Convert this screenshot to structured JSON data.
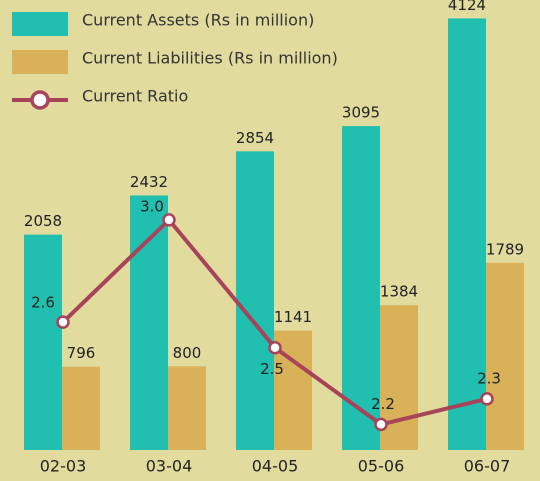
{
  "chart_data": {
    "type": "bar",
    "categories": [
      "02-03",
      "03-04",
      "04-05",
      "05-06",
      "06-07"
    ],
    "series": [
      {
        "name": "Current Assets (Rs in million)",
        "color": "#20bfb0",
        "values": [
          2058,
          2432,
          2854,
          3095,
          4124
        ]
      },
      {
        "name": "Current Liabilities (Rs in million)",
        "color": "#d8b158",
        "values": [
          796,
          800,
          1141,
          1384,
          1789
        ]
      },
      {
        "name": "Current Ratio",
        "color": "#a8435a",
        "type": "line",
        "axis": "y2",
        "values": [
          2.6,
          3.0,
          2.5,
          2.2,
          2.3
        ],
        "value_labels": [
          "2.6",
          "3.0",
          "2.5",
          "2.2",
          "2.3"
        ]
      }
    ],
    "ylim": [
      0,
      4300
    ],
    "y2lim": [
      2.1,
      3.86
    ],
    "grid": false,
    "legend": "top-left"
  }
}
